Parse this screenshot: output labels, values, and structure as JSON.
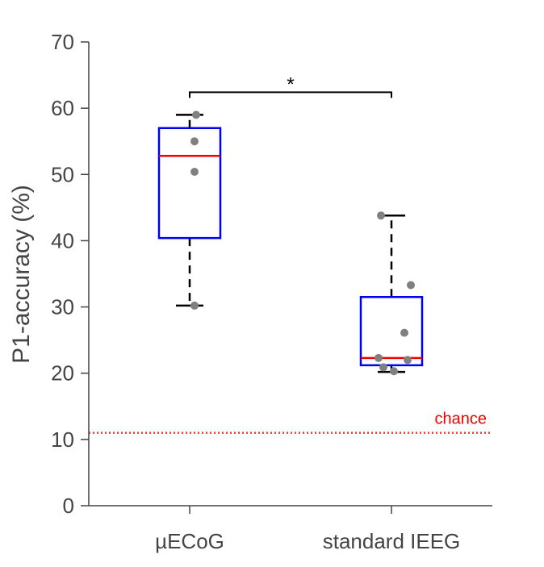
{
  "chart_data": {
    "type": "box",
    "ylabel": "P1-accuracy (%)",
    "xlabel": "",
    "ylim": [
      0,
      70
    ],
    "yticks": [
      0,
      10,
      20,
      30,
      40,
      50,
      60,
      70
    ],
    "categories": [
      "µECoG",
      "standard IEEG"
    ],
    "groups": [
      {
        "label": "µECoG",
        "whisker_low": 30.2,
        "q1": 40.4,
        "median": 52.8,
        "q3": 57.0,
        "whisker_high": 59.0,
        "points": [
          59.0,
          55.0,
          50.4,
          30.2
        ]
      },
      {
        "label": "standard IEEG",
        "whisker_low": 20.2,
        "q1": 21.2,
        "median": 22.3,
        "q3": 31.5,
        "whisker_high": 43.8,
        "points": [
          43.8,
          33.3,
          26.1,
          22.3,
          22.0,
          20.9,
          20.3
        ]
      }
    ],
    "chance": {
      "value": 11.0,
      "label": "chance"
    },
    "significance": {
      "between": [
        "µECoG",
        "standard IEEG"
      ],
      "label": "*"
    },
    "colors": {
      "box": "#0000ee",
      "median": "#ee0000",
      "whisker": "#000000",
      "points": "#808080",
      "chance": "#ff3333",
      "axis": "#444444"
    }
  }
}
